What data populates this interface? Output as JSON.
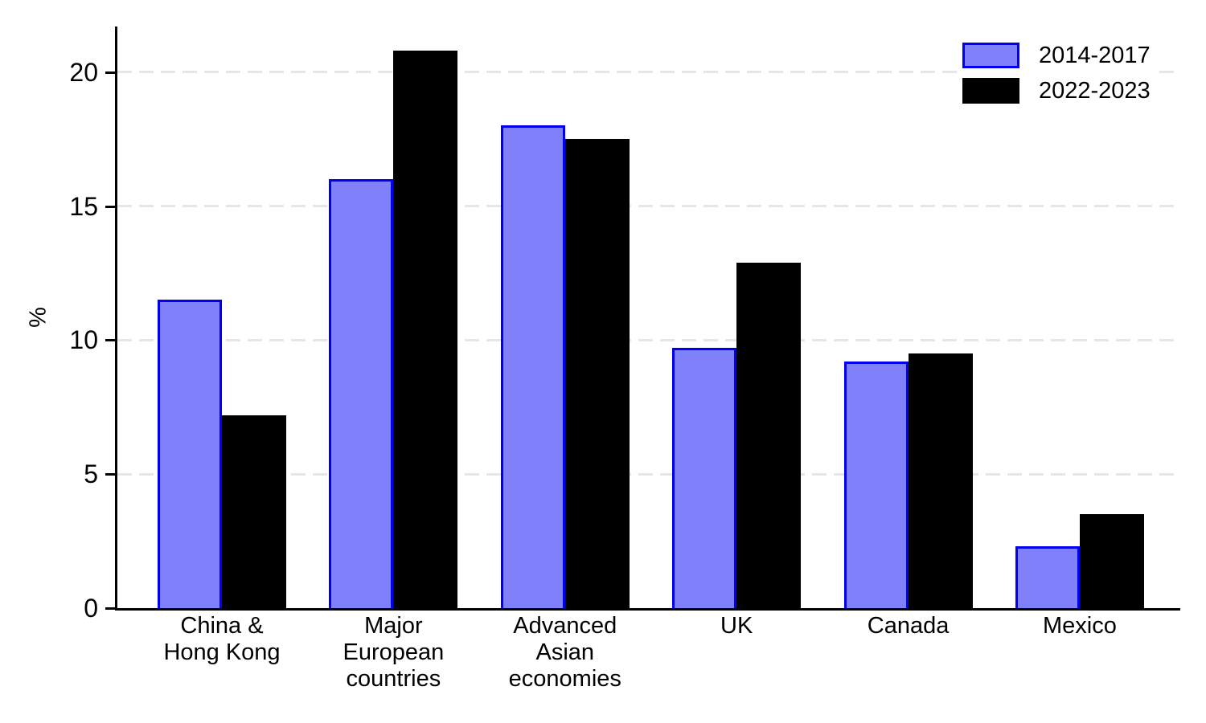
{
  "figure": {
    "background": "#ffffff",
    "axis_color": "#000000"
  },
  "chart_data": {
    "type": "bar",
    "title": "",
    "xlabel": "",
    "ylabel": "%",
    "categories": [
      [
        "China &",
        "Hong Kong"
      ],
      [
        "Major",
        "European",
        "countries"
      ],
      [
        "Advanced",
        "Asian",
        "economies"
      ],
      [
        "UK"
      ],
      [
        "Canada"
      ],
      [
        "Mexico"
      ]
    ],
    "series": [
      {
        "name": "2014-2017",
        "fill": "#8080fa",
        "stroke": "#0000ee",
        "values": [
          11.5,
          16.0,
          18.0,
          9.7,
          9.2,
          2.3
        ]
      },
      {
        "name": "2022-2023",
        "fill": "#000000",
        "stroke": "#000000",
        "values": [
          7.2,
          20.8,
          17.5,
          12.9,
          9.5,
          3.5
        ]
      }
    ],
    "yticks": [
      0,
      5,
      10,
      15,
      20
    ],
    "ylim": [
      0,
      21.7
    ],
    "grid": {
      "axis": "y",
      "style": "dashed",
      "color": "#e6e6e6",
      "at": [
        5,
        10,
        15,
        20
      ]
    },
    "legend": {
      "position": "top-right"
    }
  }
}
